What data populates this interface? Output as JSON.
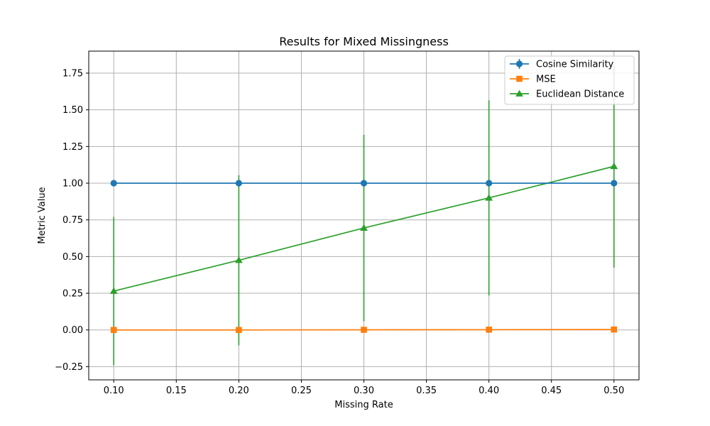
{
  "chart_data": {
    "type": "line",
    "title": "Results for Mixed Missingness",
    "xlabel": "Missing Rate",
    "ylabel": "Metric Value",
    "x": [
      0.1,
      0.2,
      0.3,
      0.4,
      0.5
    ],
    "xlim": [
      0.08,
      0.52
    ],
    "ylim": [
      -0.34,
      1.9
    ],
    "x_ticks": [
      "0.10",
      "0.15",
      "0.20",
      "0.25",
      "0.30",
      "0.35",
      "0.40",
      "0.45",
      "0.50"
    ],
    "y_ticks": [
      "−0.25",
      "0.00",
      "0.25",
      "0.50",
      "0.75",
      "1.00",
      "1.25",
      "1.50",
      "1.75"
    ],
    "grid": true,
    "legend_position": "top-right",
    "series": [
      {
        "name": "Cosine Similarity",
        "color": "#1f77b4",
        "marker": "circle",
        "values": [
          1.0,
          1.0,
          1.0,
          1.0,
          1.0
        ],
        "errors": [
          0.0,
          0.0,
          0.0,
          0.0,
          0.0
        ]
      },
      {
        "name": "MSE",
        "color": "#ff7f0e",
        "marker": "square",
        "values": [
          0.0,
          0.0,
          0.001,
          0.002,
          0.003
        ],
        "errors": [
          0.0,
          0.0,
          0.001,
          0.002,
          0.003
        ]
      },
      {
        "name": "Euclidean Distance",
        "color": "#2ca02c",
        "marker": "triangle",
        "values": [
          0.265,
          0.475,
          0.695,
          0.9,
          1.115
        ],
        "errors": [
          0.505,
          0.58,
          0.635,
          0.665,
          0.69
        ]
      }
    ]
  }
}
